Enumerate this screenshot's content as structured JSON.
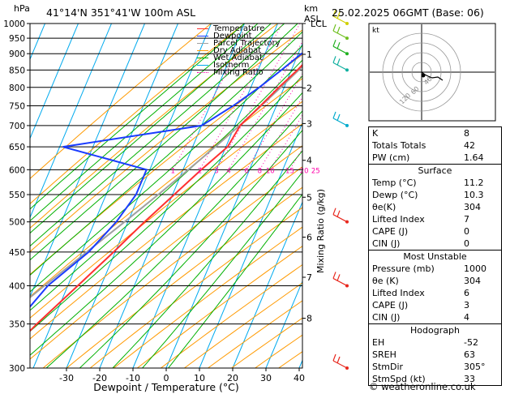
{
  "header": {
    "units": "hPa",
    "location": "41°14'N  351°41'W  100m  ASL",
    "datetime": "25.02.2025  06GMT  (Base: 06)",
    "km_label": "km",
    "asl_label": "ASL"
  },
  "footer": {
    "credit": "© weatheronline.co.uk"
  },
  "colors": {
    "temperature": "#ff3030",
    "dewpoint": "#1a3cff",
    "parcel": "#a0a0a0",
    "dry_adiabat": "#ff9a00",
    "wet_adiabat": "#00b000",
    "isotherm": "#00aaee",
    "mixing_ratio": "#ff00aa"
  },
  "legend": [
    {
      "label": "Temperature",
      "color": "#ff3030",
      "style": "solid"
    },
    {
      "label": "Dewpoint",
      "color": "#1a3cff",
      "style": "solid"
    },
    {
      "label": "Parcel Trajectory",
      "color": "#a0a0a0",
      "style": "solid"
    },
    {
      "label": "Dry Adiabat",
      "color": "#ff9a00",
      "style": "solid"
    },
    {
      "label": "Wet Adiabat",
      "color": "#00b000",
      "style": "solid"
    },
    {
      "label": "Isotherm",
      "color": "#00aaee",
      "style": "solid"
    },
    {
      "label": "Mixing Ratio",
      "color": "#ff00aa",
      "style": "dotted"
    }
  ],
  "chart_data": {
    "type": "line",
    "title": "",
    "xlabel": "Dewpoint / Temperature (°C)",
    "ylabel": "Mixing Ratio (g/kg)",
    "xlim": [
      -35,
      40
    ],
    "pressure_range": [
      1000,
      300
    ],
    "pressure_ticks": [
      300,
      350,
      400,
      450,
      500,
      550,
      600,
      650,
      700,
      750,
      800,
      850,
      900,
      950,
      1000
    ],
    "temperature_ticks": [
      -30,
      -20,
      -10,
      0,
      10,
      20,
      30,
      40
    ],
    "height_ticks": [
      {
        "km": "8",
        "p": 357
      },
      {
        "km": "7",
        "p": 412
      },
      {
        "km": "6",
        "p": 474
      },
      {
        "km": "5",
        "p": 545
      },
      {
        "km": "4",
        "p": 620
      },
      {
        "km": "3",
        "p": 705
      },
      {
        "km": "2",
        "p": 798
      },
      {
        "km": "1",
        "p": 898
      },
      {
        "km": "LCL",
        "p": 1000
      }
    ],
    "mixing_ratio_labels": [
      "1",
      "2",
      "3",
      "4",
      "6",
      "8",
      "10",
      "15",
      "20",
      "25"
    ],
    "series": [
      {
        "name": "Temperature",
        "color": "#ff3030",
        "p": [
          1000,
          950,
          900,
          850,
          800,
          750,
          700,
          650,
          600,
          550,
          500,
          450,
          400,
          350,
          300
        ],
        "t": [
          11.2,
          8.0,
          4.6,
          1.8,
          -1.6,
          -4.8,
          -8.4,
          -9.5,
          -14.5,
          -19.5,
          -25.0,
          -30.5,
          -37.0,
          -44.5,
          -52.0
        ]
      },
      {
        "name": "Dewpoint",
        "color": "#1a3cff",
        "p": [
          1000,
          950,
          900,
          850,
          800,
          750,
          700,
          650,
          600,
          550,
          500,
          450,
          400,
          350,
          300
        ],
        "t": [
          10.3,
          6.0,
          1.0,
          -3.0,
          -7.5,
          -13.0,
          -20.0,
          -59.0,
          -31.0,
          -31.0,
          -33.5,
          -38.0,
          -46.0,
          -51.0,
          -58.0
        ]
      },
      {
        "name": "Parcel Trajectory",
        "color": "#a0a0a0",
        "p": [
          1000,
          950,
          900,
          850,
          800,
          750,
          700,
          650,
          600,
          550,
          500,
          450,
          400,
          350,
          300
        ],
        "t": [
          11.2,
          8.3,
          5.3,
          2.2,
          -1.0,
          -4.6,
          -8.6,
          -13.2,
          -18.4,
          -24.3,
          -31.0,
          -38.6,
          -47.0,
          -56.5,
          -67.0
        ]
      }
    ]
  },
  "hodograph": {
    "label": "kt",
    "ring_labels": [
      "40",
      "60",
      "120"
    ]
  },
  "stats_top": [
    {
      "label": "K",
      "value": "8"
    },
    {
      "label": "Totals Totals",
      "value": "42"
    },
    {
      "label": "PW (cm)",
      "value": "1.64"
    }
  ],
  "surface": {
    "title": "Surface",
    "rows": [
      {
        "label": "Temp (°C)",
        "value": "11.2"
      },
      {
        "label": "Dewp (°C)",
        "value": "10.3"
      },
      {
        "label": "θe(K)",
        "value": "304"
      },
      {
        "label": "Lifted Index",
        "value": "7"
      },
      {
        "label": "CAPE (J)",
        "value": "0"
      },
      {
        "label": "CIN (J)",
        "value": "0"
      }
    ]
  },
  "most_unstable": {
    "title": "Most Unstable",
    "rows": [
      {
        "label": "Pressure (mb)",
        "value": "1000"
      },
      {
        "label": "θe (K)",
        "value": "304"
      },
      {
        "label": "Lifted Index",
        "value": "6"
      },
      {
        "label": "CAPE (J)",
        "value": "3"
      },
      {
        "label": "CIN (J)",
        "value": "4"
      }
    ]
  },
  "hodo_stats": {
    "title": "Hodograph",
    "rows": [
      {
        "label": "EH",
        "value": "-52"
      },
      {
        "label": "SREH",
        "value": "63"
      },
      {
        "label": "StmDir",
        "value": "305°"
      },
      {
        "label": "StmSpd (kt)",
        "value": "33"
      }
    ]
  }
}
